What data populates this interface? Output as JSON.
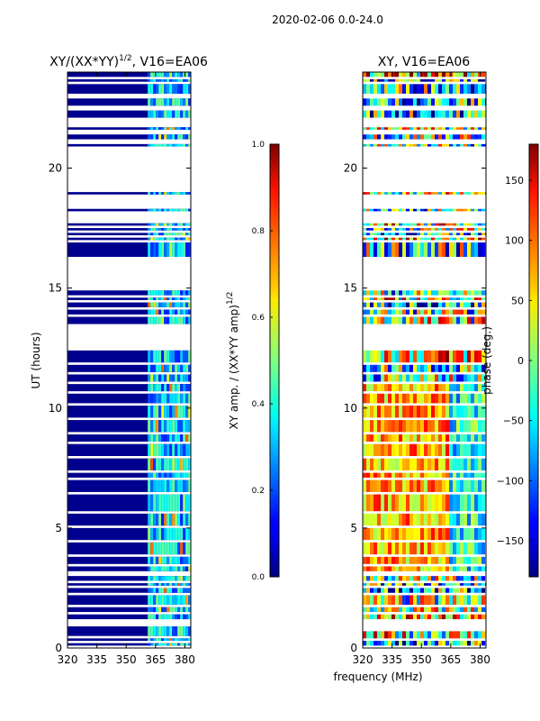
{
  "figure": {
    "suptitle": "2020-02-06 0.0-24.0",
    "shared_xlabel": "frequency (MHz)"
  },
  "chart_data": [
    {
      "type": "heatmap",
      "title": "XY/(XX*YY)",
      "title_superscript": "1/2",
      "title_suffix": ", V16=EA06",
      "xlabel": "",
      "ylabel": "UT (hours)",
      "xlim": [
        320,
        383
      ],
      "ylim": [
        0,
        24
      ],
      "xticks": [
        320,
        335,
        350,
        365,
        380
      ],
      "yticks": [
        0,
        5,
        10,
        15,
        20
      ],
      "data_rows_hours": [
        [
          0.1,
          0.2
        ],
        [
          0.3,
          0.4
        ],
        [
          0.5,
          0.9
        ],
        [
          1.2,
          1.4
        ],
        [
          1.5,
          1.7
        ],
        [
          1.8,
          2.2
        ],
        [
          2.3,
          2.5
        ],
        [
          2.6,
          2.7
        ],
        [
          2.8,
          3.0
        ],
        [
          3.2,
          3.4
        ],
        [
          3.5,
          3.8
        ],
        [
          3.9,
          4.4
        ],
        [
          4.5,
          5.0
        ],
        [
          5.1,
          5.6
        ],
        [
          5.7,
          6.4
        ],
        [
          6.5,
          7.0
        ],
        [
          7.1,
          7.3
        ],
        [
          7.4,
          7.9
        ],
        [
          8.0,
          8.5
        ],
        [
          8.6,
          8.9
        ],
        [
          9.0,
          9.5
        ],
        [
          9.6,
          10.1
        ],
        [
          10.2,
          10.6
        ],
        [
          10.7,
          11.0
        ],
        [
          11.1,
          11.4
        ],
        [
          11.5,
          11.8
        ],
        [
          11.9,
          12.4
        ],
        [
          13.5,
          13.8
        ],
        [
          13.9,
          14.1
        ],
        [
          14.2,
          14.4
        ],
        [
          14.5,
          14.6
        ],
        [
          14.7,
          14.9
        ],
        [
          16.3,
          16.9
        ],
        [
          17.0,
          17.1
        ],
        [
          17.2,
          17.3
        ],
        [
          17.4,
          17.5
        ],
        [
          17.6,
          17.7
        ],
        [
          18.2,
          18.3
        ],
        [
          18.9,
          19.0
        ],
        [
          20.9,
          21.0
        ],
        [
          21.2,
          21.4
        ],
        [
          21.6,
          21.7
        ],
        [
          22.1,
          22.4
        ],
        [
          22.6,
          22.9
        ],
        [
          23.1,
          23.5
        ],
        [
          23.6,
          23.7
        ],
        [
          23.8,
          24.0
        ]
      ],
      "high_band_mhz": [
        361,
        383
      ],
      "colorbar": {
        "label": "XY amp. / (XX*YY amp)",
        "label_superscript": "1/2",
        "ticks": [
          "0.0",
          "0.2",
          "0.4",
          "0.6",
          "0.8",
          "1.0"
        ],
        "range": [
          0,
          1
        ]
      }
    },
    {
      "type": "heatmap",
      "title": "XY, V16=EA06",
      "xlabel": "",
      "ylabel": "",
      "xlim": [
        320,
        383
      ],
      "ylim": [
        0,
        24
      ],
      "xticks": [
        320,
        335,
        350,
        365,
        380
      ],
      "yticks": [
        0,
        5,
        10,
        15,
        20
      ],
      "data_rows_hours": [
        [
          0.1,
          0.3
        ],
        [
          0.4,
          0.7
        ],
        [
          1.2,
          1.4
        ],
        [
          1.5,
          1.7
        ],
        [
          1.8,
          2.2
        ],
        [
          2.3,
          2.5
        ],
        [
          2.6,
          2.7
        ],
        [
          2.8,
          3.0
        ],
        [
          3.2,
          3.4
        ],
        [
          3.5,
          3.8
        ],
        [
          3.9,
          4.4
        ],
        [
          4.5,
          5.0
        ],
        [
          5.1,
          5.6
        ],
        [
          5.7,
          6.4
        ],
        [
          6.5,
          7.0
        ],
        [
          7.1,
          7.3
        ],
        [
          7.4,
          7.9
        ],
        [
          8.0,
          8.5
        ],
        [
          8.6,
          8.9
        ],
        [
          9.0,
          9.5
        ],
        [
          9.6,
          10.1
        ],
        [
          10.2,
          10.6
        ],
        [
          10.7,
          11.0
        ],
        [
          11.1,
          11.4
        ],
        [
          11.5,
          11.8
        ],
        [
          11.9,
          12.4
        ],
        [
          13.5,
          13.8
        ],
        [
          13.9,
          14.1
        ],
        [
          14.2,
          14.4
        ],
        [
          14.5,
          14.6
        ],
        [
          14.7,
          14.9
        ],
        [
          16.3,
          16.9
        ],
        [
          17.0,
          17.1
        ],
        [
          17.2,
          17.3
        ],
        [
          17.4,
          17.5
        ],
        [
          17.6,
          17.7
        ],
        [
          18.2,
          18.3
        ],
        [
          18.9,
          19.0
        ],
        [
          20.9,
          21.0
        ],
        [
          21.2,
          21.4
        ],
        [
          21.6,
          21.7
        ],
        [
          22.1,
          22.4
        ],
        [
          22.6,
          22.9
        ],
        [
          23.1,
          23.5
        ],
        [
          23.6,
          23.7
        ],
        [
          23.8,
          24.0
        ]
      ],
      "colorbar": {
        "label": "phase (deg.)",
        "ticks": [
          "150",
          "100",
          "50",
          "0",
          "−50",
          "−100",
          "−150"
        ],
        "tick_values": [
          150,
          100,
          50,
          0,
          -50,
          -100,
          -150
        ],
        "range": [
          -180,
          180
        ]
      }
    }
  ]
}
